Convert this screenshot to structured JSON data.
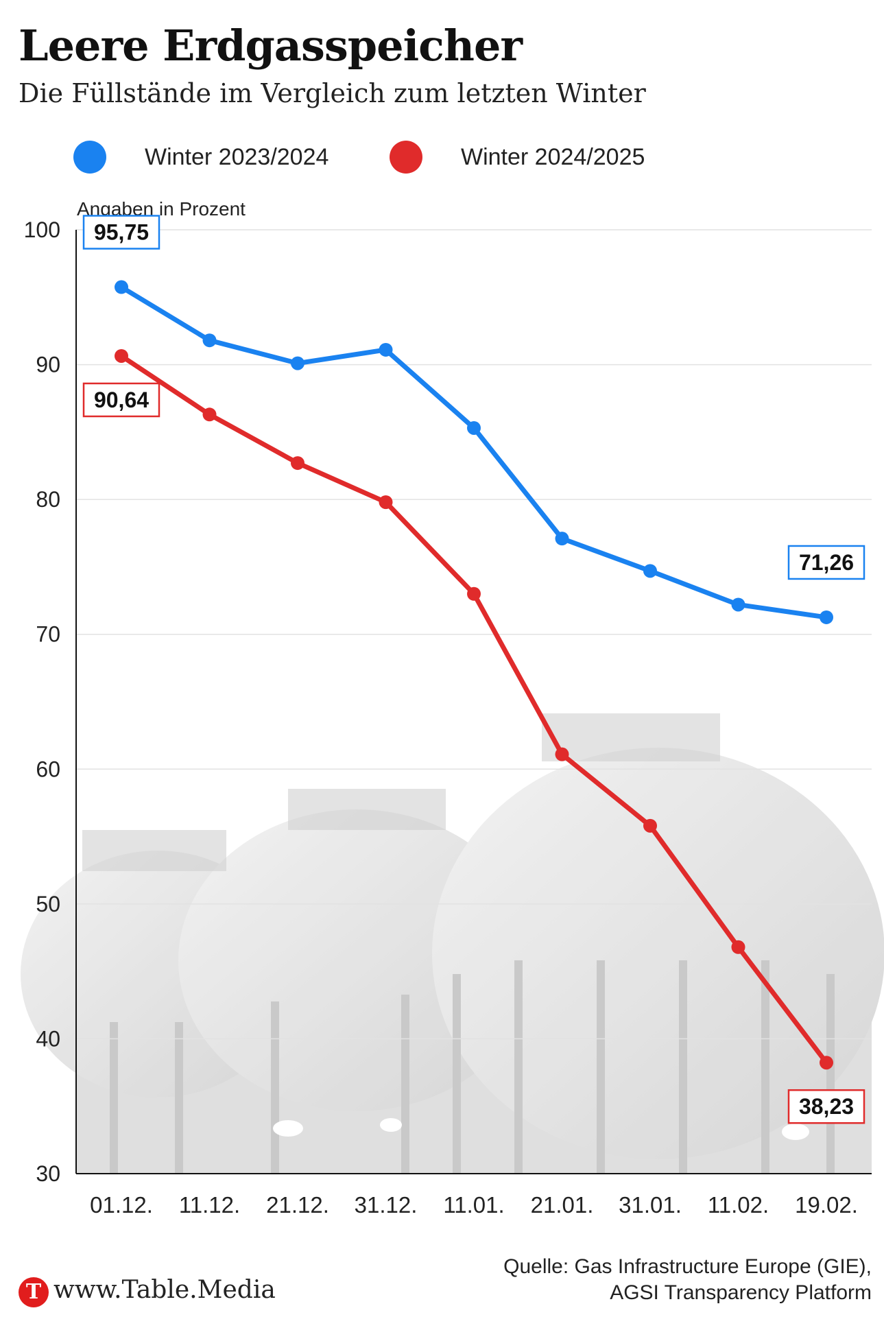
{
  "header": {
    "title": "Leere Erdgasspeicher",
    "subtitle": "Die Füllstände im Vergleich zum letzten Winter"
  },
  "legend": {
    "items": [
      {
        "label": "Winter 2023/2024",
        "color": "#1a82f0"
      },
      {
        "label": "Winter 2024/2025",
        "color": "#e02b2b"
      }
    ]
  },
  "footer": {
    "logo_letter": "T",
    "site": "www.Table.Media",
    "source_line1": "Quelle: Gas Infrastructure Europe (GIE),",
    "source_line2": "AGSI Transparency Platform"
  },
  "chart_data": {
    "type": "line",
    "unit_label": "Angaben in Prozent",
    "categories": [
      "01.12.",
      "11.12.",
      "21.12.",
      "31.12.",
      "11.01.",
      "21.01.",
      "31.01.",
      "11.02.",
      "19.02."
    ],
    "ylim": [
      30,
      100
    ],
    "yticks": [
      30,
      40,
      50,
      60,
      70,
      80,
      90,
      100
    ],
    "grid": true,
    "legend_position": "top",
    "series": [
      {
        "name": "Winter 2023/2024",
        "color": "#1a82f0",
        "values": [
          95.75,
          91.8,
          90.1,
          91.1,
          85.3,
          77.1,
          74.7,
          72.2,
          71.26
        ],
        "labels": [
          {
            "index": 0,
            "text": "95,75",
            "placement": "above"
          },
          {
            "index": 8,
            "text": "71,26",
            "placement": "above"
          }
        ]
      },
      {
        "name": "Winter 2024/2025",
        "color": "#e02b2b",
        "values": [
          90.64,
          86.3,
          82.7,
          79.8,
          73.0,
          61.1,
          55.8,
          46.8,
          38.23
        ],
        "labels": [
          {
            "index": 0,
            "text": "90,64",
            "placement": "below"
          },
          {
            "index": 8,
            "text": "38,23",
            "placement": "below"
          }
        ]
      }
    ]
  }
}
